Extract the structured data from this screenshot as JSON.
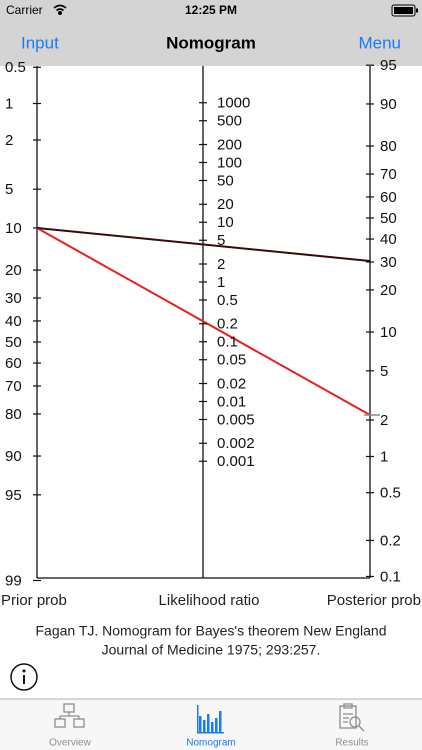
{
  "status_bar": {
    "carrier": "Carrier",
    "time": "12:25 PM"
  },
  "nav_bar": {
    "left_button": "Input",
    "title": "Nomogram",
    "right_button": "Menu"
  },
  "nomogram": {
    "prior_axis": {
      "title": "Prior prob",
      "ticks": [
        0.5,
        1,
        2,
        5,
        10,
        20,
        30,
        40,
        50,
        60,
        70,
        80,
        90,
        95,
        99
      ]
    },
    "likelihood_axis": {
      "title": "Likelihood ratio",
      "ticks": [
        1000,
        500,
        200,
        100,
        50,
        20,
        10,
        5,
        2,
        1,
        0.5,
        0.2,
        0.1,
        0.05,
        0.02,
        0.01,
        0.005,
        0.002,
        0.001
      ]
    },
    "posterior_axis": {
      "title": "Posterior prob",
      "ticks": [
        95,
        90,
        80,
        70,
        60,
        50,
        40,
        30,
        20,
        10,
        5,
        2,
        1,
        0.5,
        0.2,
        0.1
      ]
    }
  },
  "citation": [
    "Fagan TJ. Nomogram for Bayes's theorem New England",
    "Journal of Medicine 1975; 293:257."
  ],
  "tab_bar": {
    "tabs": [
      "Overview",
      "Nomogram",
      "Results"
    ]
  }
}
